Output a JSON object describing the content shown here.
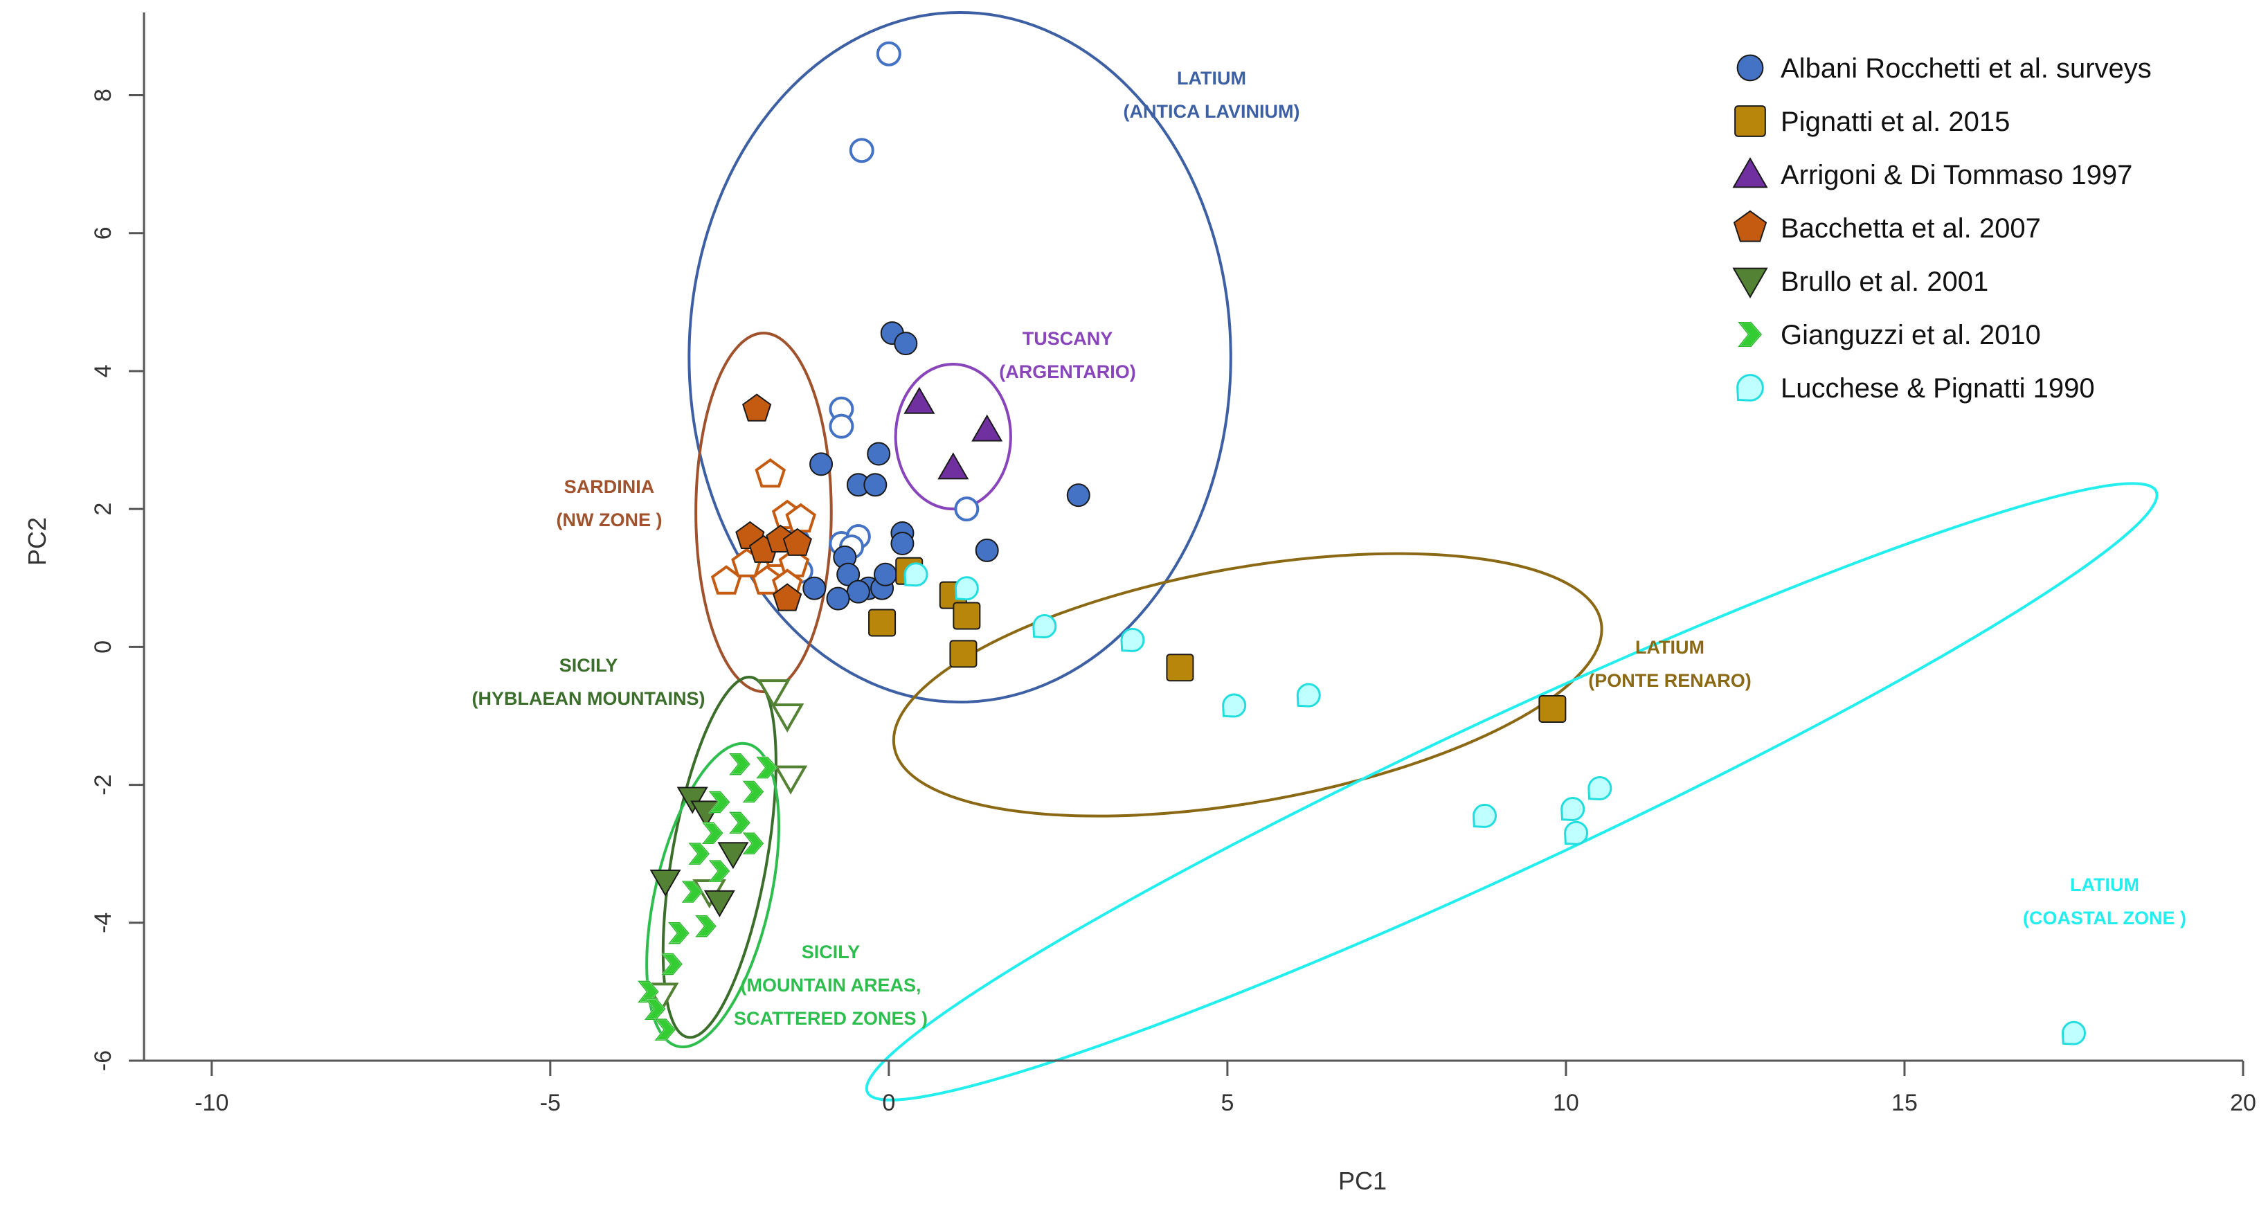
{
  "chart_data": {
    "type": "scatter",
    "xlabel": "PC1",
    "ylabel": "PC2",
    "xlim": [
      -11,
      20
    ],
    "ylim": [
      -6,
      9.2
    ],
    "xticks": [
      -10,
      -5,
      0,
      5,
      10,
      15,
      20
    ],
    "yticks": [
      -6,
      -4,
      -2,
      0,
      2,
      4,
      6,
      8
    ],
    "xtick_labels": [
      "-10",
      "-5",
      "0",
      "5",
      "10",
      "15",
      "20"
    ],
    "ytick_labels": [
      "-6",
      "-4",
      "-2",
      "0",
      "2",
      "4",
      "6",
      "8"
    ],
    "legend_position": "top-right",
    "series": [
      {
        "name": "Albani Rocchetti et al.  surveys",
        "marker": "circle",
        "color": "#4472C4",
        "filled": [
          [
            0.05,
            4.55
          ],
          [
            0.25,
            4.4
          ],
          [
            -1.0,
            2.65
          ],
          [
            -0.15,
            2.8
          ],
          [
            -0.45,
            2.35
          ],
          [
            -0.2,
            2.35
          ],
          [
            2.8,
            2.2
          ],
          [
            0.2,
            1.65
          ],
          [
            0.2,
            1.5
          ],
          [
            1.45,
            1.4
          ],
          [
            -0.65,
            1.3
          ],
          [
            -0.6,
            1.05
          ],
          [
            -0.3,
            0.85
          ],
          [
            -0.1,
            0.85
          ],
          [
            -0.45,
            0.8
          ],
          [
            -1.1,
            0.85
          ],
          [
            -0.75,
            0.7
          ],
          [
            -0.05,
            1.05
          ]
        ],
        "open": [
          [
            0.0,
            8.6
          ],
          [
            -0.4,
            7.2
          ],
          [
            -0.7,
            3.45
          ],
          [
            -0.7,
            3.2
          ],
          [
            1.15,
            2.0
          ],
          [
            -0.7,
            1.5
          ],
          [
            -0.45,
            1.6
          ],
          [
            -1.35,
            1.55
          ],
          [
            -1.3,
            1.1
          ],
          [
            -0.55,
            1.45
          ]
        ]
      },
      {
        "name": "Pignatti et al. 2015",
        "marker": "square",
        "color": "#B8860B",
        "filled": [
          [
            -0.1,
            0.35
          ],
          [
            0.3,
            1.1
          ],
          [
            0.95,
            0.75
          ],
          [
            1.15,
            0.45
          ],
          [
            1.1,
            -0.1
          ],
          [
            4.3,
            -0.3
          ],
          [
            9.8,
            -0.9
          ]
        ],
        "open": []
      },
      {
        "name": "Arrigoni & Di Tommaso 1997",
        "marker": "triangle",
        "color": "#7030A0",
        "filled": [
          [
            0.45,
            3.55
          ],
          [
            1.45,
            3.15
          ],
          [
            0.95,
            2.6
          ]
        ],
        "open": []
      },
      {
        "name": "Bacchetta et al. 2007",
        "marker": "pentagon",
        "color": "#C55A11",
        "filled": [
          [
            -1.95,
            3.45
          ],
          [
            -2.05,
            1.6
          ],
          [
            -1.85,
            1.4
          ],
          [
            -1.6,
            1.55
          ],
          [
            -1.35,
            1.5
          ],
          [
            -1.5,
            0.7
          ]
        ],
        "open": [
          [
            -1.75,
            2.5
          ],
          [
            -1.5,
            1.9
          ],
          [
            -1.3,
            1.85
          ],
          [
            -1.65,
            1.35
          ],
          [
            -1.4,
            1.2
          ],
          [
            -2.4,
            0.95
          ],
          [
            -1.8,
            0.95
          ],
          [
            -1.5,
            0.9
          ],
          [
            -2.1,
            1.2
          ]
        ]
      },
      {
        "name": "Brullo et al. 2001",
        "marker": "triangle-down",
        "color": "#548235",
        "filled": [
          [
            -2.9,
            -2.2
          ],
          [
            -2.7,
            -2.4
          ],
          [
            -2.3,
            -3.0
          ],
          [
            -3.3,
            -3.4
          ],
          [
            -2.5,
            -3.7
          ]
        ],
        "open": [
          [
            -1.7,
            -0.65
          ],
          [
            -1.5,
            -1.0
          ],
          [
            -1.45,
            -1.9
          ],
          [
            -2.65,
            -3.55
          ],
          [
            -3.35,
            -5.05
          ]
        ]
      },
      {
        "name": "Gianguzzi et al. 2010",
        "marker": "chevron",
        "color": "#33CC33",
        "filled": [
          [
            -2.2,
            -1.7
          ],
          [
            -1.8,
            -1.75
          ],
          [
            -2.0,
            -2.1
          ],
          [
            -2.5,
            -2.25
          ],
          [
            -2.2,
            -2.55
          ],
          [
            -2.6,
            -2.7
          ],
          [
            -2.0,
            -2.85
          ],
          [
            -2.8,
            -3.0
          ],
          [
            -2.5,
            -3.25
          ],
          [
            -2.9,
            -3.55
          ],
          [
            -2.7,
            -4.05
          ],
          [
            -3.1,
            -4.15
          ],
          [
            -3.2,
            -4.6
          ],
          [
            -3.55,
            -5.0
          ],
          [
            -3.45,
            -5.25
          ],
          [
            -3.3,
            -5.55
          ]
        ],
        "open": []
      },
      {
        "name": "Lucchese & Pignatti 1990",
        "marker": "lemon",
        "color": "#33EEEE",
        "filled": [
          [
            0.4,
            1.05
          ],
          [
            1.15,
            0.85
          ],
          [
            2.3,
            0.3
          ],
          [
            3.6,
            0.1
          ],
          [
            5.1,
            -0.85
          ],
          [
            6.2,
            -0.7
          ],
          [
            8.8,
            -2.45
          ],
          [
            10.1,
            -2.35
          ],
          [
            10.5,
            -2.05
          ],
          [
            10.15,
            -2.7
          ],
          [
            17.5,
            -5.6
          ]
        ],
        "open": []
      }
    ],
    "ellipses": [
      {
        "name": "Latium (Antica Lavinium)",
        "color": "#3D5FA3",
        "cx": 1.05,
        "cy": 4.2,
        "rx": 4.0,
        "ry": 5.0,
        "angle": 0
      },
      {
        "name": "Tuscany (Argentario)",
        "color": "#8844BB",
        "cx": 0.95,
        "cy": 3.05,
        "rx": 0.85,
        "ry": 1.05,
        "angle": 0
      },
      {
        "name": "Sardinia (NW zone)",
        "color": "#A0522D",
        "cx": -1.85,
        "cy": 1.95,
        "rx": 1.0,
        "ry": 2.6,
        "angle": 0
      },
      {
        "name": "Latium (Ponte Renaro)",
        "color": "#8B6914",
        "cx": 5.3,
        "cy": -0.55,
        "rx": 5.3,
        "ry": 1.7,
        "angle": -10
      },
      {
        "name": "Latium (Coastal zone)",
        "color": "#22EEEE",
        "cx": 9.2,
        "cy": -2.1,
        "rx": 10.5,
        "ry": 1.1,
        "angle": -25
      },
      {
        "name": "Sicily (Hyblaean Mountains)",
        "color": "#3B6E2A",
        "cx": -2.5,
        "cy": -3.05,
        "rx": 0.7,
        "ry": 2.65,
        "angle": 10
      },
      {
        "name": "Sicily (Mountain areas, scattered zones)",
        "color": "#2DBE4E",
        "cx": -2.6,
        "cy": -3.6,
        "rx": 0.85,
        "ry": 2.25,
        "angle": 13
      }
    ]
  },
  "region_labels": [
    {
      "id": "lat-lav",
      "color": "#3D5FA3",
      "lines": [
        "LATIUM",
        "(ANTICA LAVINIUM)"
      ]
    },
    {
      "id": "tus",
      "color": "#8844BB",
      "lines": [
        "TUSCANY",
        "(ARGENTARIO)"
      ]
    },
    {
      "id": "sar",
      "color": "#A0522D",
      "lines": [
        "SARDINIA",
        "(NW ZONE )"
      ]
    },
    {
      "id": "lat-ren",
      "color": "#8B6914",
      "lines": [
        "LATIUM",
        "(PONTE RENARO)"
      ]
    },
    {
      "id": "sic-hyb",
      "color": "#3B6E2A",
      "lines": [
        "SICILY",
        "(HYBLAEAN MOUNTAINS)"
      ]
    },
    {
      "id": "sic-mtn",
      "color": "#2DBE4E",
      "lines": [
        "SICILY",
        "(MOUNTAIN AREAS,",
        "SCATTERED ZONES )"
      ]
    },
    {
      "id": "lat-coast",
      "color": "#22EEEE",
      "lines": [
        "LATIUM",
        "(COASTAL ZONE )"
      ]
    }
  ]
}
